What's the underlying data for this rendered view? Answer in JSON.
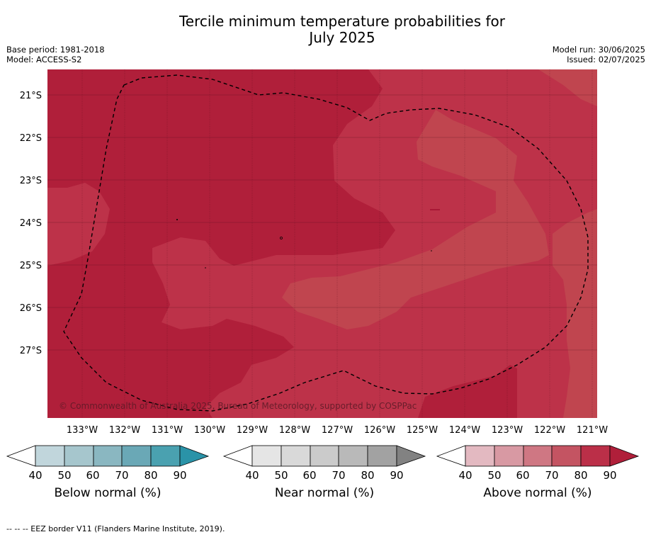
{
  "header": {
    "title_line1": "Tercile minimum temperature probabilities for",
    "title_line2": "July 2025",
    "base_period": "Base period: 1981-2018",
    "model": "Model: ACCESS-S2",
    "model_run": "Model run: 30/06/2025",
    "issued": "Issued: 02/07/2025"
  },
  "map": {
    "latitude_labels": [
      "21°S",
      "22°S",
      "23°S",
      "24°S",
      "25°S",
      "26°S",
      "27°S"
    ],
    "longitude_labels": [
      "133°W",
      "132°W",
      "131°W",
      "130°W",
      "129°W",
      "128°W",
      "127°W",
      "126°W",
      "125°W",
      "124°W",
      "123°W",
      "122°W",
      "121°W"
    ],
    "copyright": "© Commonwealth of Australia 2025, Bureau of Meteorology, supported by COSPPac",
    "category_shown": "Above normal",
    "dominant_probability_band": "80-90%",
    "fill_colors": {
      "band_60_70": "#c0454f",
      "band_70_80": "#bd3249",
      "band_80_90": "#b01f3a"
    },
    "boundary_line_color": "#000000",
    "boundary_line_style": "dashed"
  },
  "legends": [
    {
      "title": "Below normal (%)",
      "ticks": [
        "40",
        "50",
        "60",
        "70",
        "80",
        "90"
      ],
      "colors": [
        "#ffffff",
        "#c1d6dc",
        "#a6c6cd",
        "#8ab7c1",
        "#6aa8b6",
        "#4aa1b0",
        "#2a93a8"
      ]
    },
    {
      "title": "Near normal (%)",
      "ticks": [
        "40",
        "50",
        "60",
        "70",
        "80",
        "90"
      ],
      "colors": [
        "#ffffff",
        "#e5e5e5",
        "#d9d9d9",
        "#cbcbcb",
        "#b9b9b9",
        "#a2a2a2",
        "#828282"
      ]
    },
    {
      "title": "Above normal (%)",
      "ticks": [
        "40",
        "50",
        "60",
        "70",
        "80",
        "90"
      ],
      "colors": [
        "#ffffff",
        "#e3b9c1",
        "#d899a3",
        "#cf7783",
        "#c45462",
        "#bb2f48",
        "#b01f3a"
      ]
    }
  ],
  "footnote": "-- -- -- EEZ border V11 (Flanders Marine Institute, 2019)."
}
